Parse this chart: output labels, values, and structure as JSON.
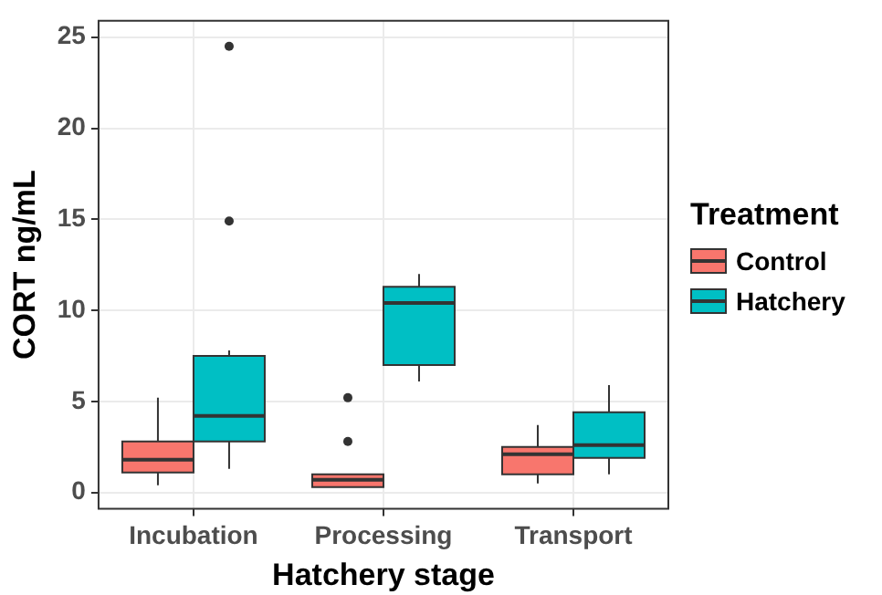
{
  "chart_data": {
    "type": "box",
    "xlabel": "Hatchery stage",
    "ylabel": "CORT ng/mL",
    "legend_title": "Treatment",
    "categories": [
      "Incubation",
      "Processing",
      "Transport"
    ],
    "ylim": [
      -0.9,
      25.9
    ],
    "yticks": [
      0,
      5,
      10,
      15,
      20,
      25
    ],
    "grid": true,
    "legend": "right",
    "series": [
      {
        "name": "Control",
        "color": "#f8766d",
        "boxes": [
          {
            "low": 0.4,
            "q1": 1.1,
            "median": 1.8,
            "q3": 2.8,
            "high": 5.2
          },
          {
            "low": 0.3,
            "q1": 0.3,
            "median": 0.7,
            "q3": 1.0,
            "high": 1.0,
            "outliers": [
              2.8,
              5.2
            ]
          },
          {
            "low": 0.5,
            "q1": 1.0,
            "median": 2.1,
            "q3": 2.5,
            "high": 3.7
          }
        ]
      },
      {
        "name": "Hatchery",
        "color": "#00bfc4",
        "boxes": [
          {
            "low": 1.3,
            "q1": 2.8,
            "median": 4.2,
            "q3": 7.5,
            "high": 7.8,
            "outliers": [
              14.9,
              24.5
            ]
          },
          {
            "low": 6.1,
            "q1": 7.0,
            "median": 10.4,
            "q3": 11.3,
            "high": 12.0
          },
          {
            "low": 1.0,
            "q1": 1.9,
            "median": 2.6,
            "q3": 4.4,
            "high": 5.9
          }
        ]
      }
    ]
  }
}
